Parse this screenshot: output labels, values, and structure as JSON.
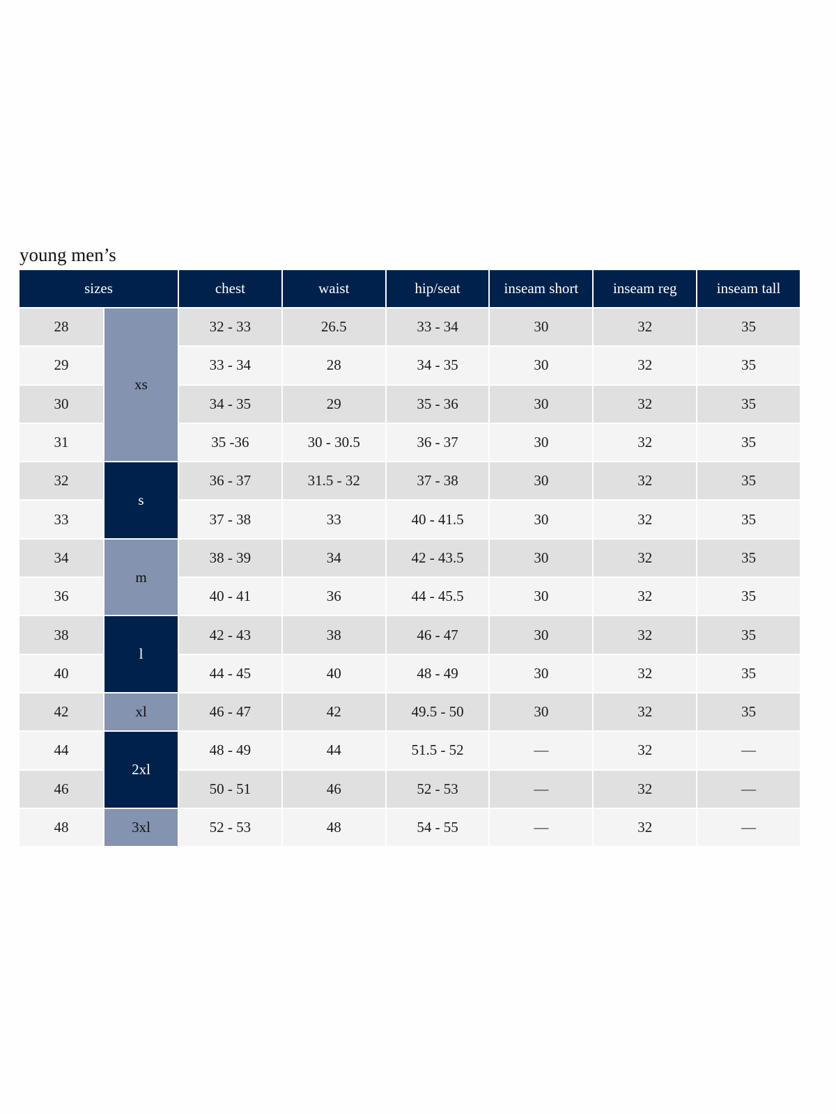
{
  "title": "young men’s",
  "colors": {
    "header": "#00214c",
    "size_light": "#8393b0",
    "size_dark": "#00214c",
    "row_odd": "#e0e0e0",
    "row_even": "#f4f4f4"
  },
  "headers": [
    "sizes",
    "chest",
    "waist",
    "hip/seat",
    "inseam short",
    "inseam reg",
    "inseam tall"
  ],
  "size_groups": [
    {
      "label": "xs",
      "rows": 4,
      "style": "light"
    },
    {
      "label": "s",
      "rows": 2,
      "style": "dark"
    },
    {
      "label": "m",
      "rows": 2,
      "style": "light"
    },
    {
      "label": "l",
      "rows": 2,
      "style": "dark"
    },
    {
      "label": "xl",
      "rows": 1,
      "style": "light"
    },
    {
      "label": "2xl",
      "rows": 2,
      "style": "dark"
    },
    {
      "label": "3xl",
      "rows": 1,
      "style": "light"
    }
  ],
  "rows": [
    [
      "28",
      "32 - 33",
      "26.5",
      "33 - 34",
      "30",
      "32",
      "35"
    ],
    [
      "29",
      "33 - 34",
      "28",
      "34 - 35",
      "30",
      "32",
      "35"
    ],
    [
      "30",
      "34 - 35",
      "29",
      "35 - 36",
      "30",
      "32",
      "35"
    ],
    [
      "31",
      "35 -36",
      "30 - 30.5",
      "36 - 37",
      "30",
      "32",
      "35"
    ],
    [
      "32",
      "36 - 37",
      "31.5 - 32",
      "37 - 38",
      "30",
      "32",
      "35"
    ],
    [
      "33",
      "37 - 38",
      "33",
      "40 - 41.5",
      "30",
      "32",
      "35"
    ],
    [
      "34",
      "38 - 39",
      "34",
      "42 - 43.5",
      "30",
      "32",
      "35"
    ],
    [
      "36",
      "40 - 41",
      "36",
      "44 - 45.5",
      "30",
      "32",
      "35"
    ],
    [
      "38",
      "42 - 43",
      "38",
      "46 - 47",
      "30",
      "32",
      "35"
    ],
    [
      "40",
      "44 - 45",
      "40",
      "48 - 49",
      "30",
      "32",
      "35"
    ],
    [
      "42",
      "46 - 47",
      "42",
      "49.5 - 50",
      "30",
      "32",
      "35"
    ],
    [
      "44",
      "48 - 49",
      "44",
      "51.5 - 52",
      "—",
      "32",
      "—"
    ],
    [
      "46",
      "50 - 51",
      "46",
      "52 - 53",
      "—",
      "32",
      "—"
    ],
    [
      "48",
      "52 - 53",
      "48",
      "54 - 55",
      "—",
      "32",
      "—"
    ]
  ]
}
